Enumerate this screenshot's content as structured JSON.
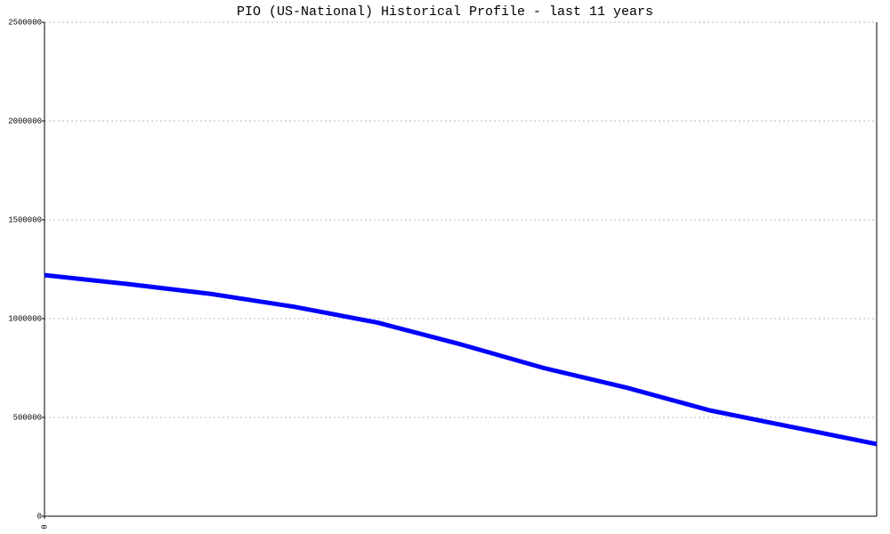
{
  "chart_data": {
    "type": "line",
    "title": "PIO (US-National) Historical Profile - last 11 years",
    "x": [
      0,
      1,
      2,
      3,
      4,
      5,
      6,
      7,
      8,
      9,
      10
    ],
    "series": [
      {
        "color": "#0000ff",
        "values": [
          1220000,
          1175000,
          1125000,
          1060000,
          980000,
          870000,
          750000,
          650000,
          535000,
          450000,
          365000
        ]
      }
    ],
    "xlim": [
      0,
      10
    ],
    "xticks": [
      0
    ],
    "ylim": [
      0,
      2500000
    ],
    "yticks": [
      0,
      500000,
      1000000,
      1500000,
      2000000,
      2500000
    ],
    "grid": true
  }
}
